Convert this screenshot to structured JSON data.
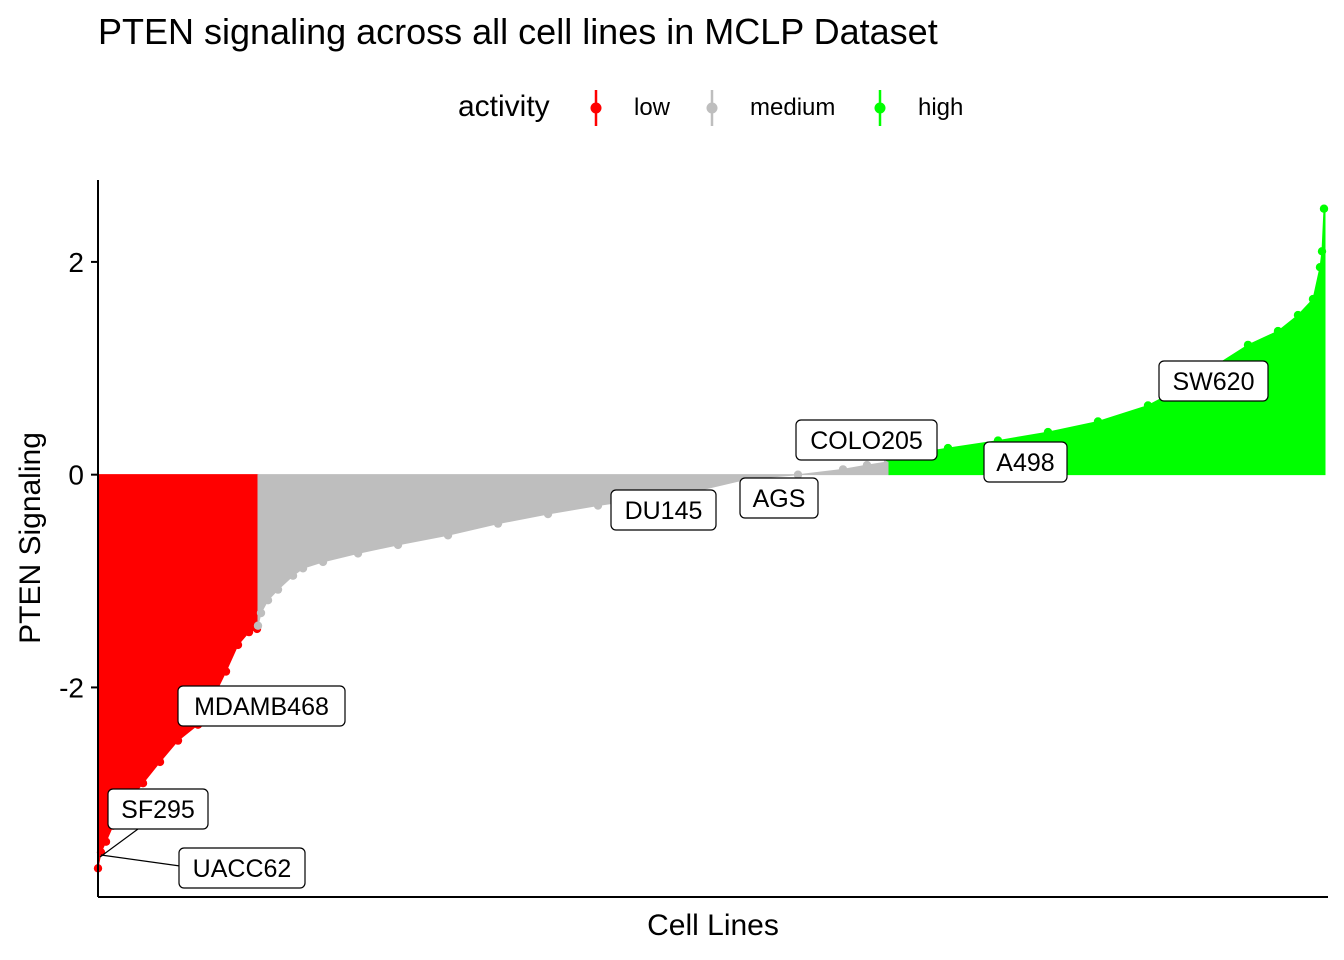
{
  "chart_data": {
    "type": "bar",
    "title": "PTEN signaling across all cell lines in MCLP Dataset",
    "xlabel": "Cell Lines",
    "ylabel": "PTEN Signaling",
    "ylim": [
      -3.97,
      2.77
    ],
    "yticks": [
      {
        "value": 2,
        "label": "2"
      },
      {
        "value": 0,
        "label": "0"
      },
      {
        "value": -2,
        "label": "-2"
      }
    ],
    "grid": false,
    "legend": {
      "title": "activity",
      "position": "top",
      "entries": [
        {
          "name": "low",
          "color": "#ff0000"
        },
        {
          "name": "medium",
          "color": "#bebebe"
        },
        {
          "name": "high",
          "color": "#00ff00"
        }
      ]
    },
    "series": [
      {
        "name": "low",
        "color": "#ff0000",
        "points": [
          [
            0,
            -3.7
          ],
          [
            3,
            -3.55
          ],
          [
            8,
            -3.45
          ],
          [
            15,
            -3.3
          ],
          [
            28,
            -3.1
          ],
          [
            45,
            -2.9
          ],
          [
            62,
            -2.7
          ],
          [
            80,
            -2.5
          ],
          [
            100,
            -2.35
          ],
          [
            115,
            -2.1
          ],
          [
            128,
            -1.85
          ],
          [
            140,
            -1.6
          ],
          [
            151,
            -1.48
          ],
          [
            159,
            -1.45
          ]
        ]
      },
      {
        "name": "medium",
        "color": "#bebebe",
        "points": [
          [
            160,
            -1.42
          ],
          [
            163,
            -1.3
          ],
          [
            170,
            -1.18
          ],
          [
            180,
            -1.08
          ],
          [
            195,
            -0.95
          ],
          [
            205,
            -0.88
          ],
          [
            225,
            -0.82
          ],
          [
            260,
            -0.74
          ],
          [
            300,
            -0.66
          ],
          [
            350,
            -0.57
          ],
          [
            400,
            -0.46
          ],
          [
            450,
            -0.37
          ],
          [
            500,
            -0.29
          ],
          [
            550,
            -0.22
          ],
          [
            600,
            -0.15
          ],
          [
            650,
            -0.04
          ],
          [
            700,
            0.0
          ],
          [
            745,
            0.05
          ],
          [
            769,
            0.09
          ],
          [
            790,
            0.12
          ]
        ]
      },
      {
        "name": "high",
        "color": "#00ff00",
        "points": [
          [
            791,
            0.16
          ],
          [
            850,
            0.25
          ],
          [
            900,
            0.32
          ],
          [
            950,
            0.4
          ],
          [
            1000,
            0.5
          ],
          [
            1050,
            0.65
          ],
          [
            1080,
            0.8
          ],
          [
            1110,
            0.98
          ],
          [
            1150,
            1.22
          ],
          [
            1180,
            1.35
          ],
          [
            1200,
            1.5
          ],
          [
            1215,
            1.65
          ],
          [
            1222,
            1.95
          ],
          [
            1224,
            2.1
          ],
          [
            1226,
            2.5
          ]
        ]
      }
    ],
    "annotations": [
      {
        "text": "SF295",
        "y": -3.15
      },
      {
        "text": "UACC62",
        "y": -3.7
      },
      {
        "text": "MDAMB468",
        "y": -2.18
      },
      {
        "text": "DU145",
        "y": -0.33
      },
      {
        "text": "AGS",
        "y": -0.22
      },
      {
        "text": "COLO205",
        "y": 0.33
      },
      {
        "text": "A498",
        "y": 0.12
      },
      {
        "text": "SW620",
        "y": 0.89
      }
    ]
  }
}
